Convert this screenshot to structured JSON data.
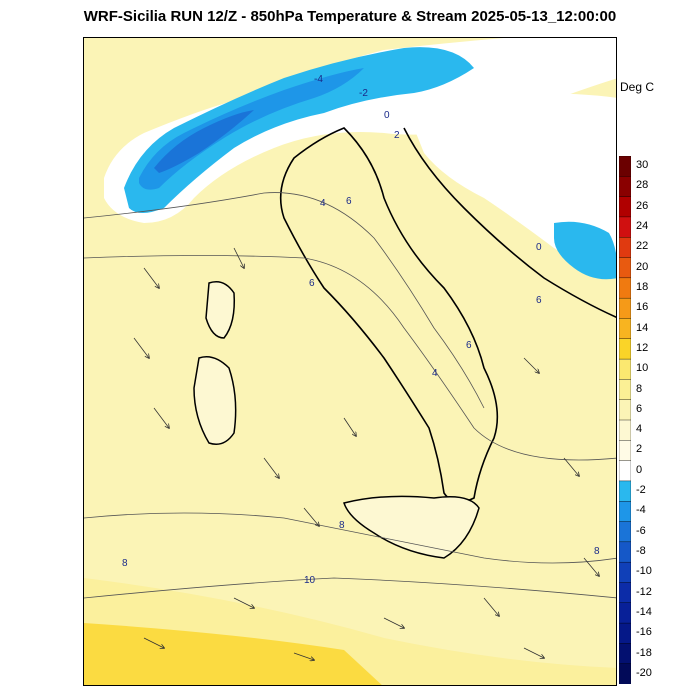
{
  "title": "WRF-Sicilia RUN 12/Z - 850hPa Temperature & Stream 2025-05-13_12:00:00",
  "units": "Deg C",
  "colorbar": {
    "labels": [
      "30",
      "28",
      "26",
      "24",
      "22",
      "20",
      "18",
      "16",
      "14",
      "12",
      "10",
      "8",
      "6",
      "4",
      "2",
      "0",
      "-2",
      "-4",
      "-6",
      "-8",
      "-10",
      "-12",
      "-14",
      "-16",
      "-18",
      "-20"
    ],
    "colors": [
      "#6b0000",
      "#8a0000",
      "#b00000",
      "#d01010",
      "#e03a10",
      "#e85a10",
      "#f07a10",
      "#f59a18",
      "#f8b420",
      "#fad428",
      "#fbe870",
      "#fbf095",
      "#fbf4b6",
      "#fdf8d2",
      "#fffbe6",
      "#ffffff",
      "#2ab8ee",
      "#1e96e8",
      "#1a74d8",
      "#1558c8",
      "#1040b8",
      "#0c2ca8",
      "#082098",
      "#051888",
      "#031070",
      "#020a58"
    ]
  },
  "contour_labels": [
    "-4",
    "-2",
    "0",
    "2",
    "4",
    "6",
    "6",
    "6",
    "6",
    "4",
    "8",
    "8",
    "8",
    "10",
    "0"
  ]
}
